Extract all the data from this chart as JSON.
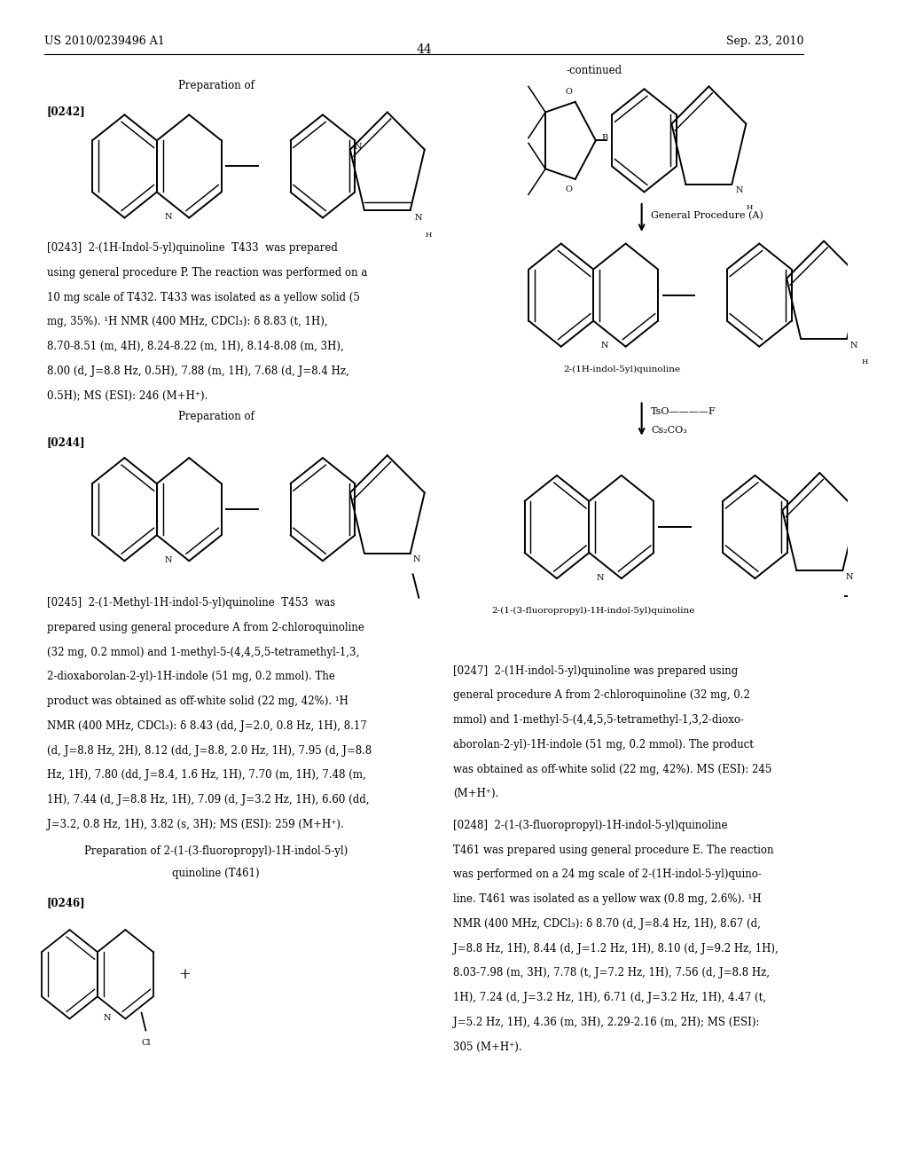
{
  "page_header_left": "US 2010/0239496 A1",
  "page_header_right": "Sep. 23, 2010",
  "page_number": "44",
  "bg_color": "#ffffff",
  "text_color": "#000000",
  "fs": 8.5,
  "lh": 0.021,
  "para0243": [
    "[0243]  2-(1H-Indol-5-yl)quinoline  T433  was prepared",
    "using general procedure P. The reaction was performed on a",
    "10 mg scale of T432. T433 was isolated as a yellow solid (5",
    "mg, 35%). ¹H NMR (400 MHz, CDCl₃): δ 8.83 (t, 1H),",
    "8.70-8.51 (m, 4H), 8.24-8.22 (m, 1H), 8.14-8.08 (m, 3H),",
    "8.00 (d, J=8.8 Hz, 0.5H), 7.88 (m, 1H), 7.68 (d, J=8.4 Hz,",
    "0.5H); MS (ESI): 246 (M+H⁺)."
  ],
  "para0245": [
    "[0245]  2-(1-Methyl-1H-indol-5-yl)quinoline  T453  was",
    "prepared using general procedure A from 2-chloroquinoline",
    "(32 mg, 0.2 mmol) and 1-methyl-5-(4,4,5,5-tetramethyl-1,3,",
    "2-dioxaborolan-2-yl)-1H-indole (51 mg, 0.2 mmol). The",
    "product was obtained as off-white solid (22 mg, 42%). ¹H",
    "NMR (400 MHz, CDCl₃): δ 8.43 (dd, J=2.0, 0.8 Hz, 1H), 8.17",
    "(d, J=8.8 Hz, 2H), 8.12 (dd, J=8.8, 2.0 Hz, 1H), 7.95 (d, J=8.8",
    "Hz, 1H), 7.80 (dd, J=8.4, 1.6 Hz, 1H), 7.70 (m, 1H), 7.48 (m,",
    "1H), 7.44 (d, J=8.8 Hz, 1H), 7.09 (d, J=3.2 Hz, 1H), 6.60 (dd,",
    "J=3.2, 0.8 Hz, 1H), 3.82 (s, 3H); MS (ESI): 259 (M+H⁺)."
  ],
  "para0247": [
    "[0247]  2-(1H-indol-5-yl)quinoline was prepared using",
    "general procedure A from 2-chloroquinoline (32 mg, 0.2",
    "mmol) and 1-methyl-5-(4,4,5,5-tetramethyl-1,3,2-dioxo-",
    "aborolan-2-yl)-1H-indole (51 mg, 0.2 mmol). The product",
    "was obtained as off-white solid (22 mg, 42%). MS (ESI): 245",
    "(M+H⁺)."
  ],
  "para0248": [
    "[0248]  2-(1-(3-fluoropropyl)-1H-indol-5-yl)quinoline",
    "T461 was prepared using general procedure E. The reaction",
    "was performed on a 24 mg scale of 2-(1H-indol-5-yl)quino-",
    "line. T461 was isolated as a yellow wax (0.8 mg, 2.6%). ¹H",
    "NMR (400 MHz, CDCl₃): δ 8.70 (d, J=8.4 Hz, 1H), 8.67 (d,",
    "J=8.8 Hz, 1H), 8.44 (d, J=1.2 Hz, 1H), 8.10 (d, J=9.2 Hz, 1H),",
    "8.03-7.98 (m, 3H), 7.78 (t, J=7.2 Hz, 1H), 7.56 (d, J=8.8 Hz,",
    "1H), 7.24 (d, J=3.2 Hz, 1H), 6.71 (d, J=3.2 Hz, 1H), 4.47 (t,",
    "J=5.2 Hz, 1H), 4.36 (m, 3H), 2.29-2.16 (m, 2H); MS (ESI):",
    "305 (M+H⁺)."
  ]
}
